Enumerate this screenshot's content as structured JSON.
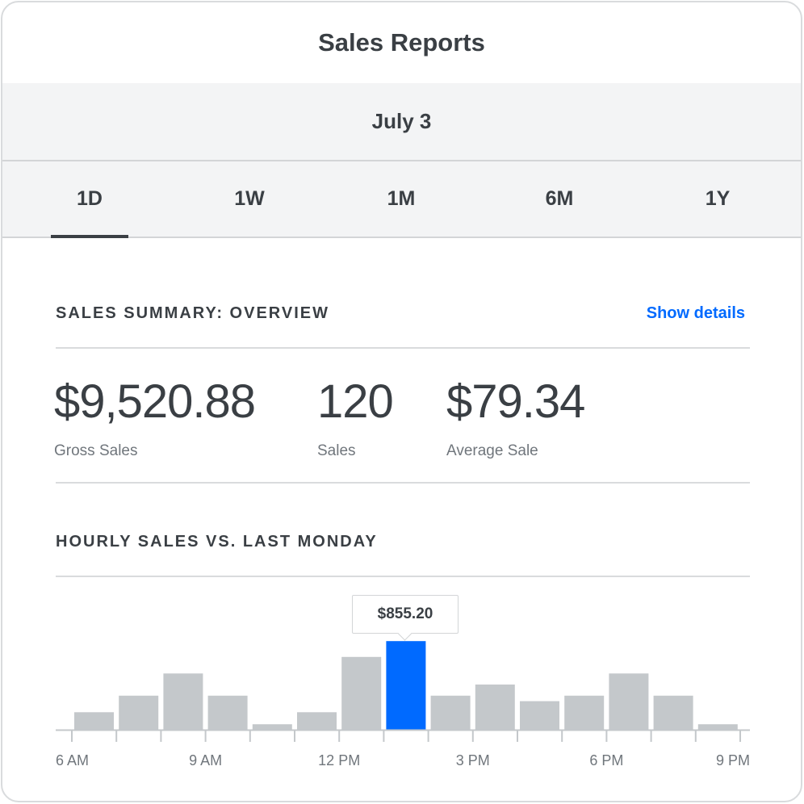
{
  "header": {
    "title": "Sales Reports"
  },
  "date": "July 3",
  "tabs": [
    {
      "label": "1D",
      "active": true
    },
    {
      "label": "1W",
      "active": false
    },
    {
      "label": "1M",
      "active": false
    },
    {
      "label": "6M",
      "active": false
    },
    {
      "label": "1Y",
      "active": false
    }
  ],
  "summary": {
    "title": "SALES SUMMARY: OVERVIEW",
    "link": "Show details",
    "metrics": [
      {
        "value": "$9,520.88",
        "label": "Gross Sales"
      },
      {
        "value": "120",
        "label": "Sales"
      },
      {
        "value": "$79.34",
        "label": "Average Sale"
      }
    ]
  },
  "hourly": {
    "title": "HOURLY SALES VS. LAST MONDAY",
    "tooltip": "$855.20"
  },
  "colors": {
    "accent": "#006aff",
    "bar": "#c4c8cb",
    "text": "#3a3f44",
    "muted": "#70767c"
  },
  "chart_data": {
    "type": "bar",
    "categories": [
      "6 AM",
      "7 AM",
      "8 AM",
      "9 AM",
      "10 AM",
      "11 AM",
      "12 PM",
      "1 PM",
      "2 PM",
      "3 PM",
      "4 PM",
      "5 PM",
      "6 PM",
      "7 PM",
      "8 PM"
    ],
    "values": [
      169,
      329,
      543,
      329,
      53,
      169,
      703,
      855.2,
      329,
      436,
      276,
      329,
      543,
      329,
      53
    ],
    "highlight_index": 7,
    "tick_labels": [
      "6 AM",
      "9 AM",
      "12 PM",
      "3 PM",
      "6 PM",
      "9 PM"
    ],
    "ylim": [
      0,
      900
    ],
    "grid": false
  }
}
